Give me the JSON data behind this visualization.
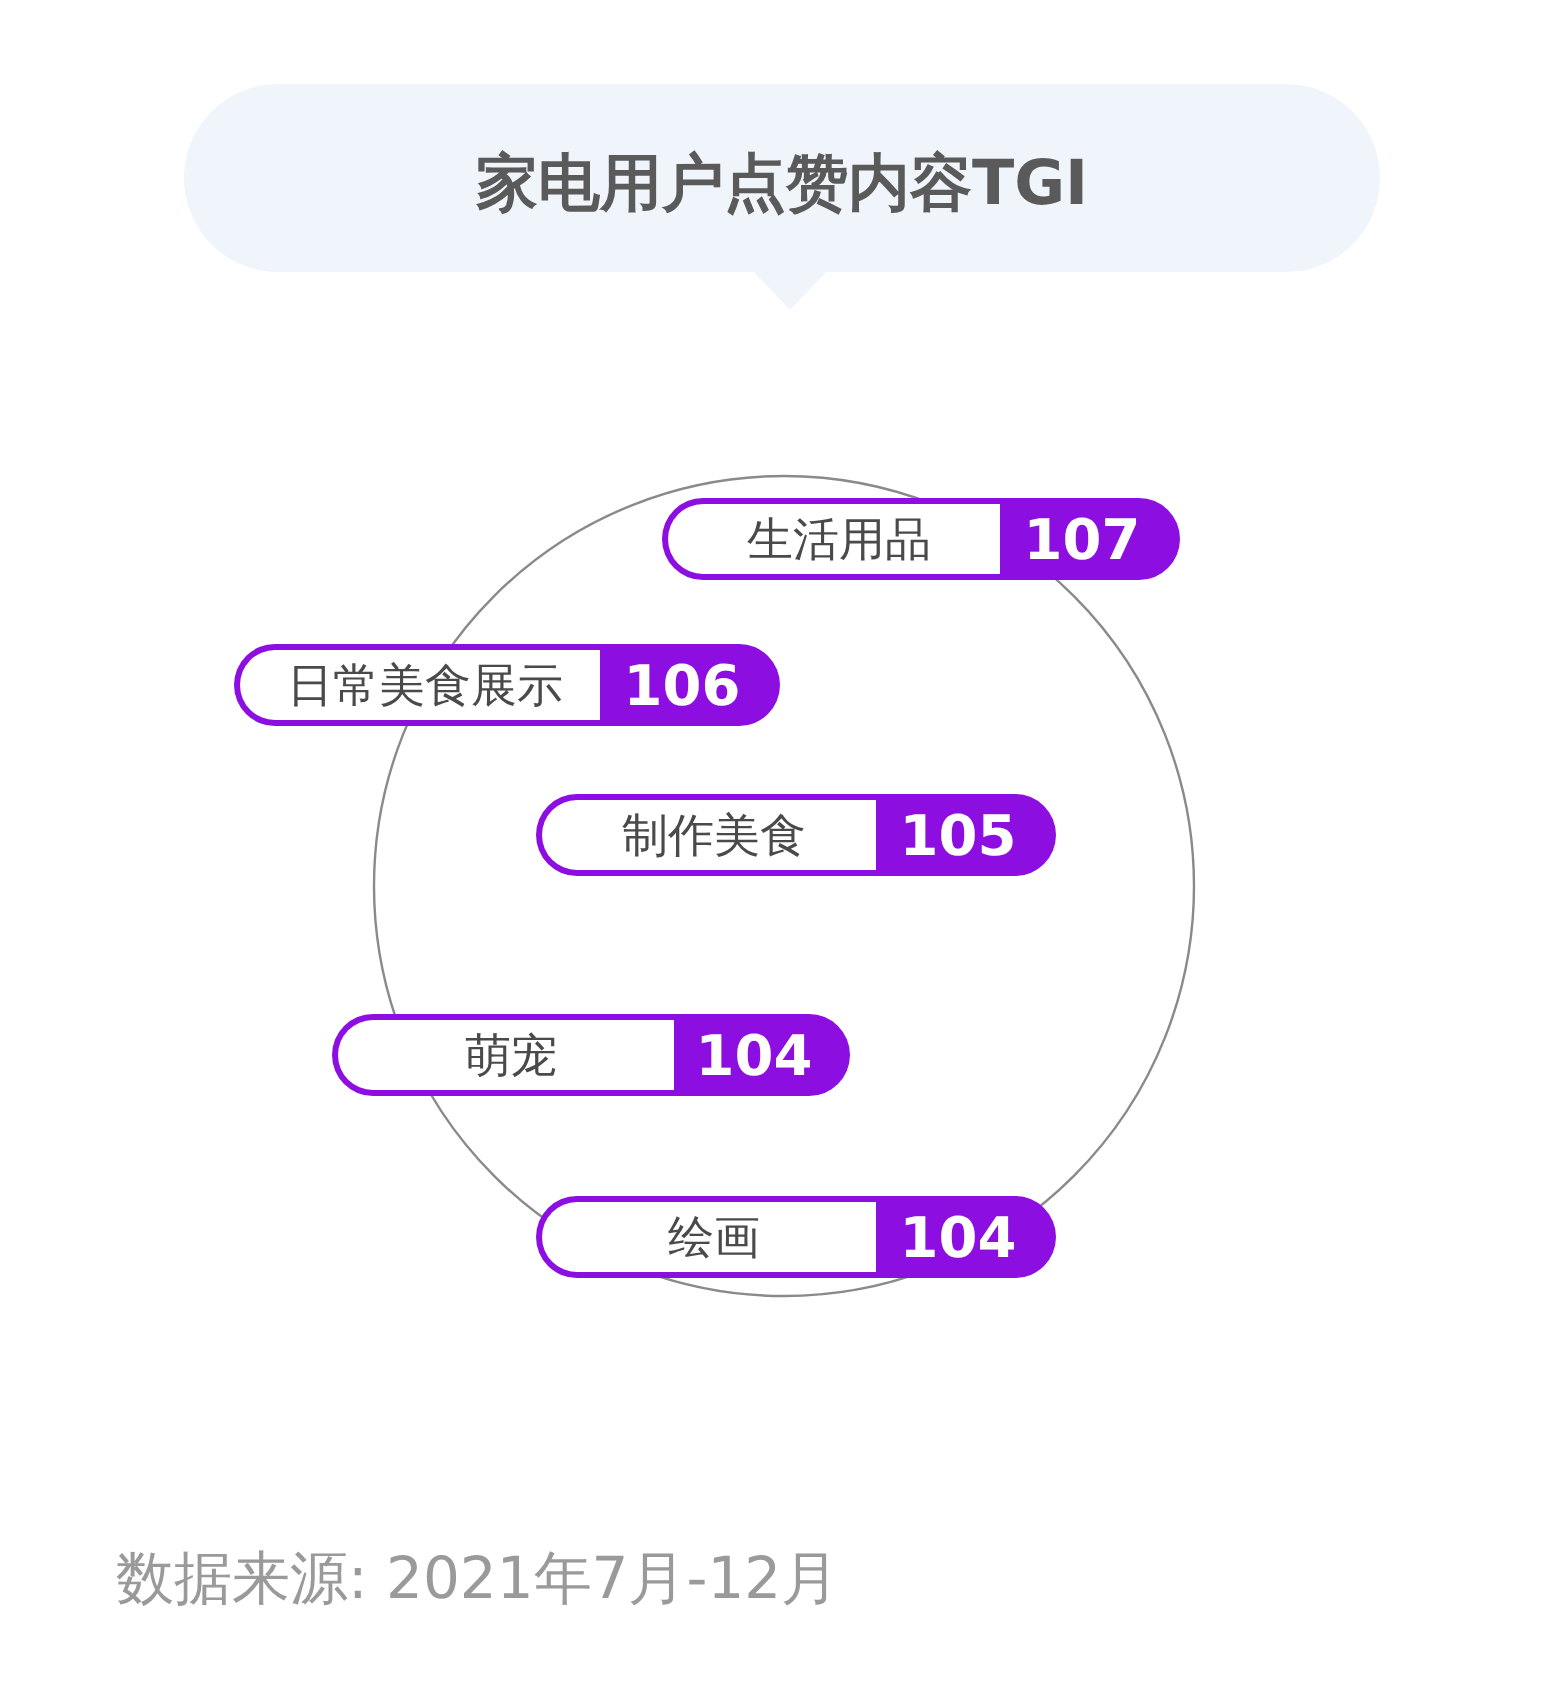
{
  "chart_data": {
    "type": "other",
    "title": "家电用户点赞内容TGI",
    "categories": [
      "生活用品",
      "日常美食展示",
      "制作美食",
      "萌宠",
      "绘画"
    ],
    "values": [
      107,
      106,
      105,
      104,
      104
    ],
    "color": "#8c0ee0",
    "data_labels": true,
    "annotations": [
      "数据来源: 2021年7月-12月"
    ]
  }
}
